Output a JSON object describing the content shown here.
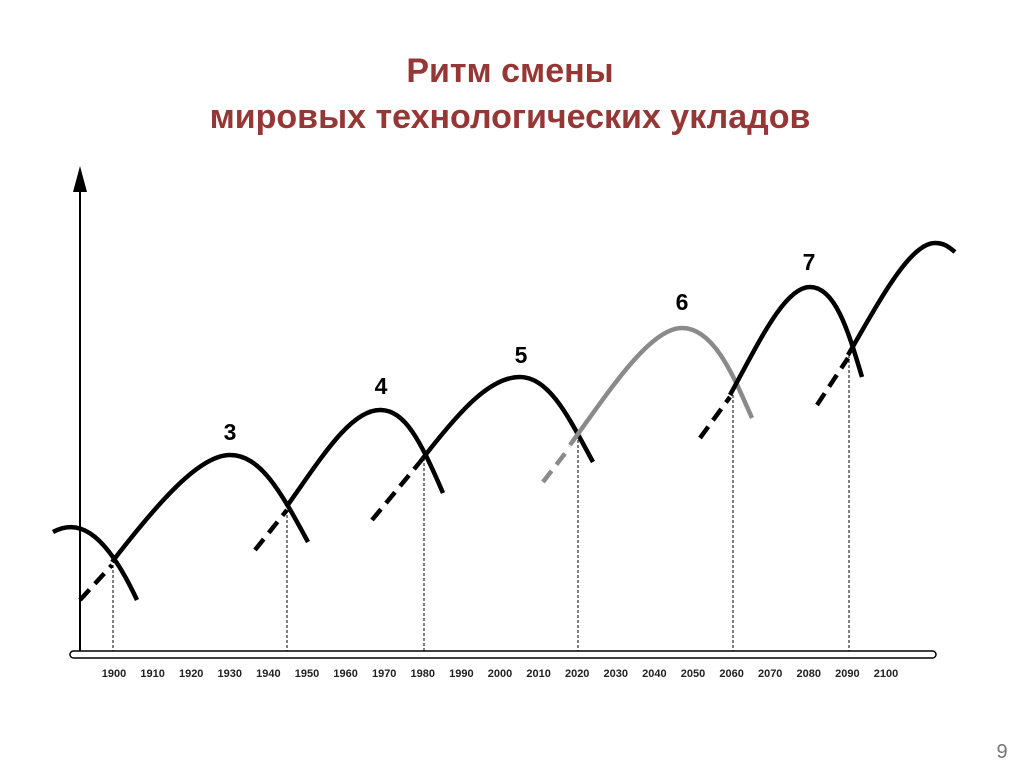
{
  "title": [
    "Ритм смены",
    "мировых технологических укладов"
  ],
  "axis": {
    "years": [
      "1900",
      "1910",
      "1920",
      "1930",
      "1940",
      "1950",
      "1960",
      "1970",
      "1980",
      "1990",
      "2000",
      "2010",
      "2020",
      "2030",
      "2040",
      "2050",
      "2060",
      "2070",
      "2080",
      "2090",
      "2100"
    ]
  },
  "waves": [
    {
      "label": "3"
    },
    {
      "label": "4"
    },
    {
      "label": "5"
    },
    {
      "label": "6"
    },
    {
      "label": "7"
    }
  ],
  "page_number": "9"
}
